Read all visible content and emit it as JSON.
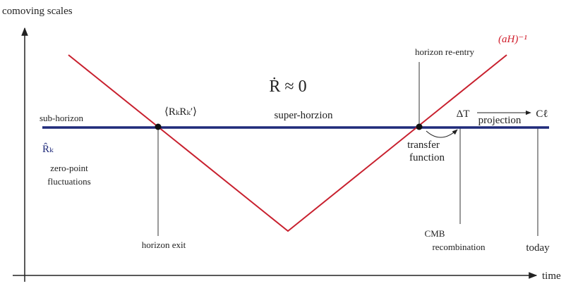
{
  "axes": {
    "y_label": "comoving scales",
    "x_label": "time"
  },
  "curves": {
    "hubble_radius": "(aH)⁻¹",
    "mode": "R̂ₖ"
  },
  "regions": {
    "sub_horizon": "sub-horizon",
    "super_horizon": "super-horzion",
    "conservation": "Ṙ ≈ 0"
  },
  "annotations": {
    "zero_point": [
      "zero-point",
      "fluctuations"
    ],
    "correlator": "⟨RₖRₖ′⟩",
    "horizon_exit": "horizon exit",
    "horizon_reentry": "horizon re-entry",
    "transfer": [
      "transfer",
      "function"
    ],
    "delta_t": "ΔT",
    "projection": "projection",
    "c_ell": "Cℓ",
    "cmb": [
      "CMB",
      "recombination"
    ],
    "today": "today"
  }
}
